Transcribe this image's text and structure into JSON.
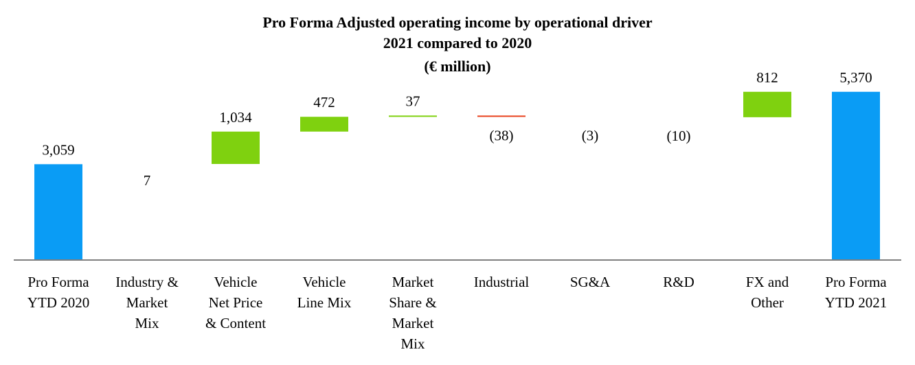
{
  "chart_data": {
    "type": "waterfall",
    "title": [
      "Pro Forma Adjusted operating income by operational driver",
      "2021 compared to 2020",
      "(€ million)"
    ],
    "xlabel": "",
    "ylabel": "",
    "ylim": [
      0,
      8300
    ],
    "categories": [
      [
        "Pro Forma",
        "YTD 2020"
      ],
      [
        "Industry &",
        "Market",
        "Mix"
      ],
      [
        "Vehicle",
        "Net Price",
        "& Content"
      ],
      [
        "Vehicle",
        "Line Mix"
      ],
      [
        "Market",
        "Share &",
        "Market",
        "Mix"
      ],
      [
        "Industrial"
      ],
      [
        "SG&A"
      ],
      [
        "R&D"
      ],
      [
        "FX and",
        "Other"
      ],
      [
        "Pro Forma",
        "YTD 2021"
      ]
    ],
    "values": [
      3059,
      7,
      1034,
      472,
      37,
      -38,
      -3,
      -10,
      812,
      5370
    ],
    "labels": [
      "3,059",
      "7",
      "1,034",
      "472",
      "37",
      "(38)",
      "(3)",
      "(10)",
      "812",
      "5,370"
    ],
    "kinds": [
      "total",
      "delta",
      "delta",
      "delta",
      "delta",
      "delta",
      "delta",
      "delta",
      "delta",
      "total"
    ],
    "colors": {
      "total": "#0a9cf5",
      "increase": "#7fd10f",
      "decrease": "#e8401c",
      "axis": "#7f7f7f"
    }
  }
}
